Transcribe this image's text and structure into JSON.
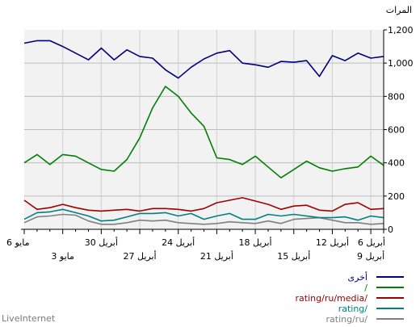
{
  "chart_data": {
    "type": "line",
    "ylabel": "المرات",
    "ylim": [
      0,
      1200
    ],
    "y_ticks": [
      "0",
      "200",
      "400",
      "600",
      "800",
      "1,000",
      "1,200"
    ],
    "grid": true,
    "x_ticks_top": [
      "6 مايو",
      "30 أبريل",
      "24 أبريل",
      "18 أبريل",
      "12 أبريل",
      "6 أبريل"
    ],
    "x_ticks_bottom": [
      "3 مايو",
      "27 أبريل",
      "21 أبريل",
      "15 أبريل",
      "9 أبريل"
    ],
    "series": [
      {
        "name": "أخرى",
        "color": "#000080",
        "values": [
          1120,
          1135,
          1135,
          1100,
          1060,
          1020,
          1090,
          1020,
          1080,
          1040,
          1030,
          960,
          910,
          975,
          1025,
          1060,
          1075,
          1000,
          990,
          975,
          1010,
          1005,
          1015,
          920,
          1045,
          1015,
          1060,
          1030,
          1040
        ]
      },
      {
        "name": "/",
        "color": "#008000",
        "values": [
          400,
          450,
          390,
          450,
          440,
          400,
          360,
          350,
          420,
          550,
          730,
          860,
          800,
          700,
          620,
          430,
          420,
          390,
          440,
          375,
          310,
          360,
          410,
          370,
          350,
          365,
          375,
          440,
          385
        ]
      },
      {
        "name": "rating/ru/media/",
        "color": "#a00000",
        "values": [
          175,
          120,
          130,
          150,
          130,
          115,
          110,
          115,
          120,
          110,
          125,
          125,
          120,
          110,
          125,
          160,
          175,
          190,
          170,
          150,
          120,
          140,
          145,
          115,
          110,
          150,
          160,
          120,
          125
        ]
      },
      {
        "name": "rating/",
        "color": "#008080",
        "values": [
          60,
          100,
          105,
          120,
          100,
          80,
          50,
          55,
          75,
          95,
          95,
          100,
          80,
          95,
          60,
          80,
          95,
          60,
          60,
          90,
          80,
          90,
          80,
          70,
          70,
          75,
          55,
          80,
          70
        ]
      },
      {
        "name": "rating/ru/",
        "color": "#808080",
        "values": [
          40,
          75,
          80,
          90,
          85,
          50,
          30,
          30,
          40,
          55,
          50,
          55,
          40,
          35,
          30,
          35,
          45,
          40,
          35,
          50,
          35,
          60,
          65,
          70,
          55,
          40,
          40,
          30,
          35
        ]
      }
    ]
  },
  "footer": {
    "brand": "LiveInternet"
  }
}
